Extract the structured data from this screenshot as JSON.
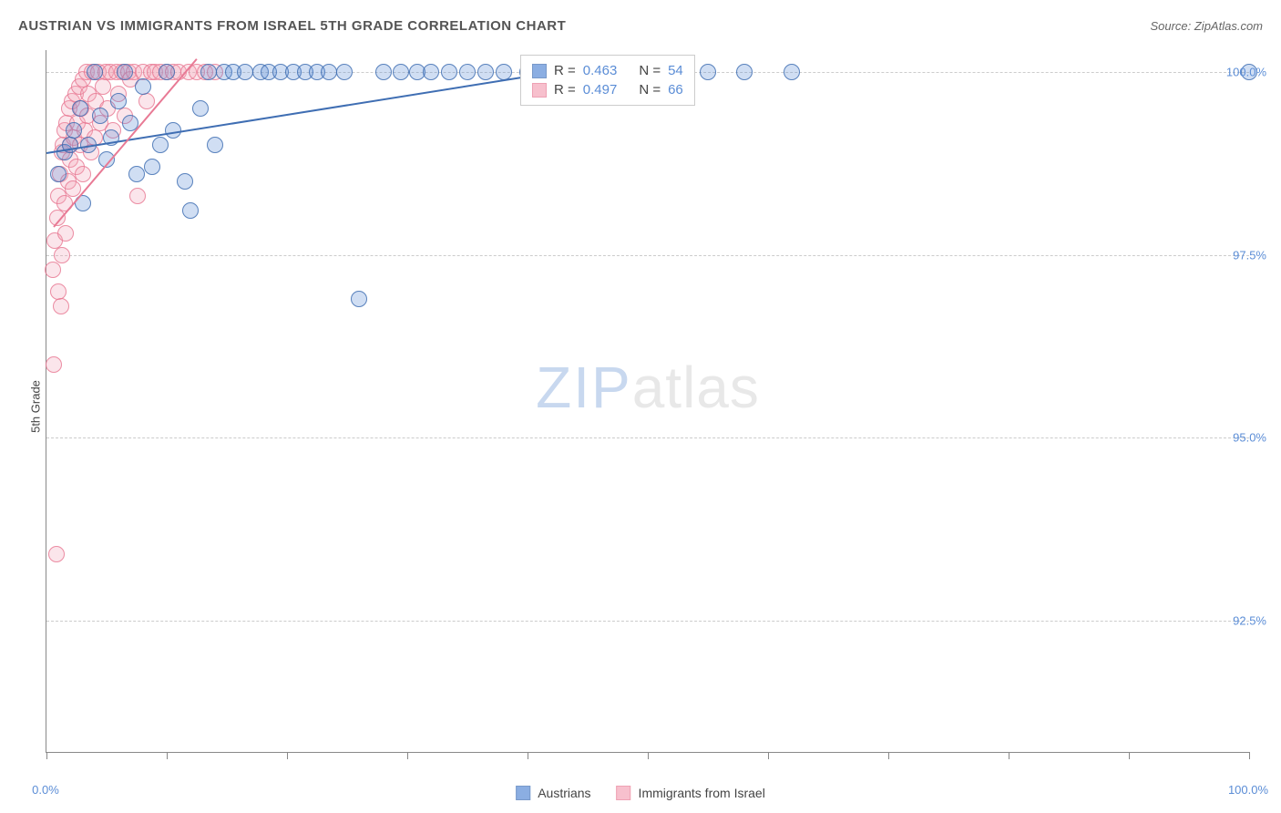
{
  "title": "AUSTRIAN VS IMMIGRANTS FROM ISRAEL 5TH GRADE CORRELATION CHART",
  "source": "Source: ZipAtlas.com",
  "ylabel": "5th Grade",
  "watermark": {
    "zip": "ZIP",
    "atlas": "atlas"
  },
  "chart": {
    "type": "scatter",
    "background_color": "#ffffff",
    "grid_color": "#cccccc",
    "axis_color": "#888888",
    "text_color": "#555555",
    "tick_label_color": "#5b8dd6",
    "title_fontsize": 15,
    "label_fontsize": 13,
    "xlim": [
      0,
      100
    ],
    "ylim": [
      90.7,
      100.3
    ],
    "x_ticks": [
      0,
      10,
      20,
      30,
      40,
      50,
      60,
      70,
      80,
      90,
      100
    ],
    "x_tick_labels": {
      "0": "0.0%",
      "100": "100.0%"
    },
    "y_gridlines": [
      92.5,
      95.0,
      97.5,
      100.0
    ],
    "y_tick_labels": [
      "92.5%",
      "95.0%",
      "97.5%",
      "100.0%"
    ],
    "marker_radius": 9,
    "marker_fill_opacity": 0.28,
    "marker_stroke_width": 1.2,
    "series": [
      {
        "name": "Austrians",
        "color": "#5b8dd6",
        "stroke": "#3f6eb3",
        "R": "0.463",
        "N": "54",
        "trend": {
          "x1": 0,
          "y1": 98.9,
          "x2": 42,
          "y2": 100.0,
          "width": 2
        },
        "points": [
          [
            1.0,
            98.6
          ],
          [
            1.5,
            98.9
          ],
          [
            2.0,
            99.0
          ],
          [
            2.3,
            99.2
          ],
          [
            2.8,
            99.5
          ],
          [
            3.0,
            98.2
          ],
          [
            3.5,
            99.0
          ],
          [
            4.0,
            100.0
          ],
          [
            4.5,
            99.4
          ],
          [
            5.0,
            98.8
          ],
          [
            5.4,
            99.1
          ],
          [
            6.0,
            99.6
          ],
          [
            6.5,
            100.0
          ],
          [
            7.0,
            99.3
          ],
          [
            7.5,
            98.6
          ],
          [
            8.0,
            99.8
          ],
          [
            8.8,
            98.7
          ],
          [
            9.5,
            99.0
          ],
          [
            10.0,
            100.0
          ],
          [
            10.5,
            99.2
          ],
          [
            11.5,
            98.5
          ],
          [
            12.0,
            98.1
          ],
          [
            12.8,
            99.5
          ],
          [
            13.5,
            100.0
          ],
          [
            14.0,
            99.0
          ],
          [
            14.8,
            100.0
          ],
          [
            15.5,
            100.0
          ],
          [
            16.5,
            100.0
          ],
          [
            17.8,
            100.0
          ],
          [
            18.5,
            100.0
          ],
          [
            19.5,
            100.0
          ],
          [
            20.5,
            100.0
          ],
          [
            21.5,
            100.0
          ],
          [
            22.5,
            100.0
          ],
          [
            23.5,
            100.0
          ],
          [
            24.8,
            100.0
          ],
          [
            26.0,
            96.9
          ],
          [
            28.0,
            100.0
          ],
          [
            29.5,
            100.0
          ],
          [
            30.8,
            100.0
          ],
          [
            32.0,
            100.0
          ],
          [
            33.5,
            100.0
          ],
          [
            35.0,
            100.0
          ],
          [
            36.5,
            100.0
          ],
          [
            38.0,
            100.0
          ],
          [
            40.0,
            100.0
          ],
          [
            42.0,
            100.0
          ],
          [
            44.5,
            100.0
          ],
          [
            48.0,
            100.0
          ],
          [
            52.0,
            100.0
          ],
          [
            55.0,
            100.0
          ],
          [
            58.0,
            100.0
          ],
          [
            62.0,
            100.0
          ],
          [
            100.0,
            100.0
          ]
        ]
      },
      {
        "name": "Immigrants from Israel",
        "color": "#f4a6b8",
        "stroke": "#e87a95",
        "R": "0.497",
        "N": "66",
        "trend": {
          "x1": 0.6,
          "y1": 97.9,
          "x2": 12.5,
          "y2": 100.2,
          "width": 2
        },
        "points": [
          [
            0.5,
            97.3
          ],
          [
            0.6,
            96.0
          ],
          [
            0.7,
            97.7
          ],
          [
            0.8,
            93.4
          ],
          [
            0.9,
            98.0
          ],
          [
            1.0,
            98.3
          ],
          [
            1.0,
            97.0
          ],
          [
            1.1,
            98.6
          ],
          [
            1.2,
            96.8
          ],
          [
            1.3,
            98.9
          ],
          [
            1.3,
            97.5
          ],
          [
            1.4,
            99.0
          ],
          [
            1.5,
            98.2
          ],
          [
            1.5,
            99.2
          ],
          [
            1.6,
            97.8
          ],
          [
            1.7,
            99.3
          ],
          [
            1.8,
            98.5
          ],
          [
            1.9,
            99.5
          ],
          [
            2.0,
            98.8
          ],
          [
            2.0,
            99.0
          ],
          [
            2.1,
            99.6
          ],
          [
            2.2,
            98.4
          ],
          [
            2.3,
            99.1
          ],
          [
            2.4,
            99.7
          ],
          [
            2.5,
            98.7
          ],
          [
            2.6,
            99.3
          ],
          [
            2.7,
            99.8
          ],
          [
            2.8,
            99.0
          ],
          [
            2.9,
            99.5
          ],
          [
            3.0,
            99.9
          ],
          [
            3.0,
            98.6
          ],
          [
            3.2,
            99.2
          ],
          [
            3.3,
            100.0
          ],
          [
            3.4,
            99.4
          ],
          [
            3.5,
            99.7
          ],
          [
            3.7,
            98.9
          ],
          [
            3.8,
            100.0
          ],
          [
            4.0,
            99.1
          ],
          [
            4.1,
            99.6
          ],
          [
            4.3,
            100.0
          ],
          [
            4.5,
            99.3
          ],
          [
            4.7,
            99.8
          ],
          [
            4.9,
            100.0
          ],
          [
            5.1,
            99.5
          ],
          [
            5.3,
            100.0
          ],
          [
            5.5,
            99.2
          ],
          [
            5.8,
            100.0
          ],
          [
            6.0,
            99.7
          ],
          [
            6.3,
            100.0
          ],
          [
            6.5,
            99.4
          ],
          [
            6.8,
            100.0
          ],
          [
            7.0,
            99.9
          ],
          [
            7.3,
            100.0
          ],
          [
            7.6,
            98.3
          ],
          [
            8.0,
            100.0
          ],
          [
            8.3,
            99.6
          ],
          [
            8.7,
            100.0
          ],
          [
            9.0,
            100.0
          ],
          [
            9.5,
            100.0
          ],
          [
            10.0,
            100.0
          ],
          [
            10.5,
            100.0
          ],
          [
            11.0,
            100.0
          ],
          [
            11.8,
            100.0
          ],
          [
            12.5,
            100.0
          ],
          [
            13.2,
            100.0
          ],
          [
            14.0,
            100.0
          ]
        ]
      }
    ]
  },
  "stats_legend": {
    "r_label": "R =",
    "n_label": "N ="
  },
  "bottom_legend": [
    "Austrians",
    "Immigrants from Israel"
  ]
}
